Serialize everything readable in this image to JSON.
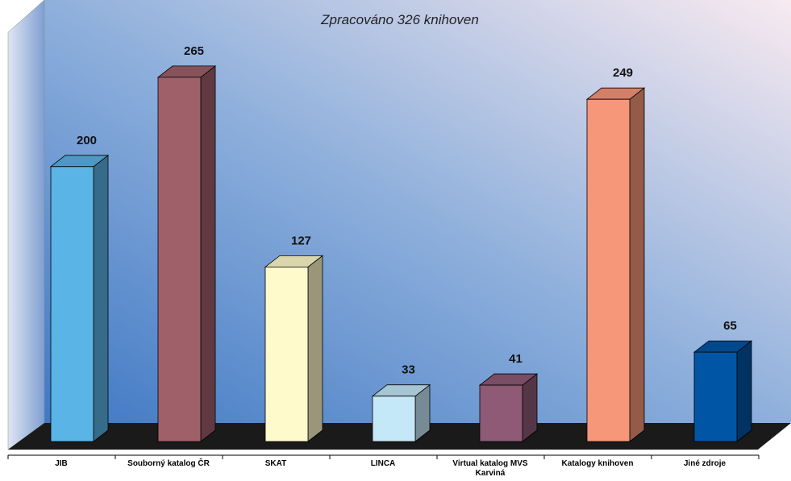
{
  "chart_data": {
    "type": "bar3d",
    "subtitle": "Zpracováno 326 knihoven",
    "categories": [
      "JIB",
      "Souborný katalog ČR",
      "SKAT",
      "LINCA",
      "Virtual katalog MVS Karviná",
      "Katalogy knihoven",
      "Jiné zdroje"
    ],
    "values": [
      200,
      265,
      127,
      33,
      41,
      249,
      65
    ],
    "colors": [
      "#5ab4e5",
      "#a0606a",
      "#fffacc",
      "#c5e8f8",
      "#8e5a76",
      "#f7977a",
      "#0055a5"
    ]
  }
}
